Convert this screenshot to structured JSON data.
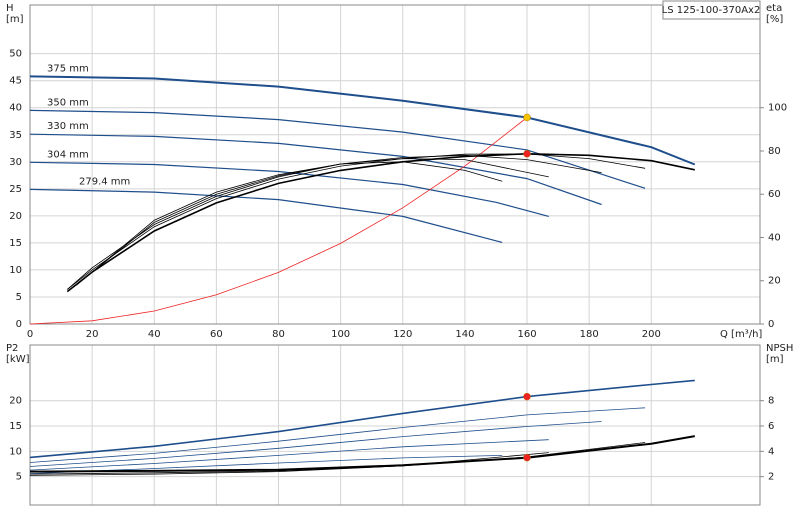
{
  "chart_data": [
    {
      "type": "line",
      "model": "LS 125-100-370Ax2",
      "ylabel": [
        "H",
        "[m]"
      ],
      "y2label": [
        "eta",
        "[%]"
      ],
      "xlabel": "Q [m³/h]",
      "xlim": [
        0,
        235
      ],
      "xticks": [
        0,
        20,
        40,
        60,
        80,
        100,
        120,
        140,
        160,
        180,
        200
      ],
      "ylim": [
        0,
        59
      ],
      "yticks": [
        0,
        5,
        10,
        15,
        20,
        25,
        30,
        35,
        40,
        45,
        50
      ],
      "y2lim": [
        0,
        147.5
      ],
      "y2ticks": [
        0,
        20,
        40,
        60,
        80,
        100
      ],
      "grid": true,
      "series": [
        {
          "name": "375 mm",
          "color": "#1f4e8c",
          "width": 2,
          "x": [
            0,
            40,
            80,
            120,
            160,
            200,
            214
          ],
          "values": [
            45.8,
            45.4,
            43.9,
            41.3,
            38.2,
            32.7,
            29.5
          ]
        },
        {
          "name": "350 mm",
          "color": "#1f4e8c",
          "width": 1.2,
          "x": [
            0,
            40,
            80,
            120,
            160,
            198
          ],
          "values": [
            39.5,
            39.1,
            37.8,
            35.5,
            32.2,
            25.1
          ]
        },
        {
          "name": "330 mm",
          "color": "#1f4e8c",
          "width": 1.2,
          "x": [
            0,
            40,
            80,
            120,
            160,
            184
          ],
          "values": [
            35.1,
            34.7,
            33.4,
            31,
            26.9,
            22.1
          ]
        },
        {
          "name": "304 mm",
          "color": "#1f4e8c",
          "width": 1.2,
          "x": [
            0,
            40,
            80,
            120,
            150,
            167
          ],
          "values": [
            29.9,
            29.5,
            28.2,
            25.8,
            22.5,
            19.9
          ]
        },
        {
          "name": "279.4 mm",
          "color": "#1f4e8c",
          "width": 1.2,
          "x": [
            0,
            40,
            80,
            120,
            152
          ],
          "values": [
            24.9,
            24.4,
            23,
            19.9,
            15.1
          ]
        },
        {
          "color": "#ee2222",
          "width": 0.8,
          "x": [
            0,
            20,
            40,
            60,
            80,
            100,
            120,
            140,
            160
          ],
          "values": [
            0,
            0.6,
            2.4,
            5.4,
            9.55,
            14.9,
            21.5,
            29.2,
            38.2
          ]
        },
        {
          "color": "#000000",
          "width": 1.6,
          "axis": "y2",
          "x": [
            12,
            20,
            40,
            60,
            80,
            100,
            120,
            140,
            160,
            180,
            200,
            214
          ],
          "values": [
            15,
            24,
            43,
            56,
            65,
            71,
            75,
            77.5,
            78.7,
            78,
            75.5,
            71.3
          ]
        },
        {
          "color": "#000000",
          "width": 0.8,
          "axis": "y2",
          "x": [
            12,
            20,
            40,
            60,
            80,
            100,
            120,
            140,
            160,
            180,
            198
          ],
          "values": [
            16,
            25,
            45,
            58,
            67,
            73,
            76.5,
            78.5,
            78.6,
            76.5,
            72
          ]
        },
        {
          "color": "#000000",
          "width": 0.8,
          "axis": "y2",
          "x": [
            12,
            20,
            40,
            60,
            80,
            100,
            120,
            140,
            160,
            184
          ],
          "values": [
            16,
            26,
            46,
            59,
            68,
            74,
            77,
            78,
            76,
            70
          ]
        },
        {
          "color": "#000000",
          "width": 0.8,
          "axis": "y2",
          "x": [
            14,
            40,
            60,
            80,
            100,
            120,
            140,
            167
          ],
          "values": [
            17,
            47,
            60,
            68.5,
            74,
            76.5,
            76,
            68
          ]
        },
        {
          "color": "#000000",
          "width": 0.8,
          "axis": "y2",
          "x": [
            15,
            40,
            60,
            80,
            100,
            120,
            140,
            152
          ],
          "values": [
            18,
            48,
            61,
            69,
            74,
            75,
            71,
            66
          ]
        }
      ],
      "markers": [
        {
          "x": 160,
          "y": 38.2,
          "color": "#f5c400"
        },
        {
          "x": 160,
          "y": 78.7,
          "color": "#ee2222",
          "axis": "y2"
        }
      ]
    },
    {
      "type": "line",
      "ylabel": [
        "P2",
        "[kW]"
      ],
      "y2label": [
        "NPSH",
        "[m]"
      ],
      "xlim": [
        0,
        235
      ],
      "xticks": [
        0,
        20,
        40,
        60,
        80,
        100,
        120,
        140,
        160,
        180,
        200
      ],
      "ylim": [
        -0.6,
        31
      ],
      "yticks": [
        5,
        10,
        15,
        20
      ],
      "y2lim": [
        -0.24,
        12.4
      ],
      "y2ticks": [
        2,
        4,
        6,
        8
      ],
      "grid": true,
      "series": [
        {
          "color": "#1f4e8c",
          "width": 1.6,
          "x": [
            0,
            40,
            80,
            120,
            160,
            200,
            214
          ],
          "values": [
            8.8,
            11,
            13.9,
            17.5,
            20.8,
            23.2,
            24
          ]
        },
        {
          "color": "#1f4e8c",
          "width": 0.8,
          "x": [
            0,
            40,
            80,
            120,
            160,
            198
          ],
          "values": [
            7.8,
            9.6,
            12,
            14.7,
            17.2,
            18.6
          ]
        },
        {
          "color": "#1f4e8c",
          "width": 0.8,
          "x": [
            0,
            40,
            80,
            120,
            160,
            184
          ],
          "values": [
            7,
            8.6,
            10.6,
            12.9,
            14.9,
            15.9
          ]
        },
        {
          "color": "#1f4e8c",
          "width": 0.8,
          "x": [
            0,
            40,
            80,
            120,
            167
          ],
          "values": [
            6.3,
            7.6,
            9.2,
            10.9,
            12.3
          ]
        },
        {
          "color": "#1f4e8c",
          "width": 0.8,
          "x": [
            0,
            40,
            80,
            120,
            152
          ],
          "values": [
            5.6,
            6.6,
            7.7,
            8.7,
            9.2
          ]
        },
        {
          "color": "#000000",
          "width": 2,
          "axis": "y2",
          "x": [
            0,
            40,
            80,
            120,
            160,
            200,
            214
          ],
          "values": [
            2.4,
            2.45,
            2.55,
            2.9,
            3.5,
            4.6,
            5.2
          ]
        },
        {
          "color": "#000000",
          "width": 0.8,
          "axis": "y2",
          "x": [
            0,
            40,
            80,
            120,
            160,
            198
          ],
          "values": [
            2.2,
            2.3,
            2.45,
            2.85,
            3.55,
            4.7
          ]
        },
        {
          "color": "#000000",
          "width": 0.8,
          "axis": "y2",
          "x": [
            0,
            40,
            80,
            120,
            167
          ],
          "values": [
            2.1,
            2.2,
            2.4,
            2.85,
            3.9
          ]
        }
      ],
      "markers": [
        {
          "x": 160,
          "y": 20.8,
          "color": "#ee2222"
        },
        {
          "x": 160,
          "y": 3.5,
          "color": "#ee2222",
          "axis": "y2"
        }
      ]
    }
  ]
}
